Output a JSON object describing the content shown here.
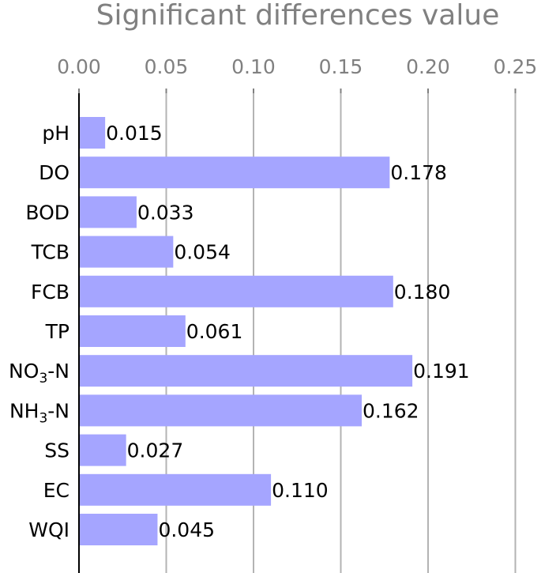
{
  "chart_data": {
    "type": "bar",
    "orientation": "horizontal",
    "title": "",
    "xlabel": "Significant differences value",
    "ylabel": "",
    "xlabel_position": "top",
    "categories": [
      {
        "main": "pH",
        "sub": "",
        "tail": ""
      },
      {
        "main": "DO",
        "sub": "",
        "tail": ""
      },
      {
        "main": "BOD",
        "sub": "",
        "tail": ""
      },
      {
        "main": "TCB",
        "sub": "",
        "tail": ""
      },
      {
        "main": "FCB",
        "sub": "",
        "tail": ""
      },
      {
        "main": "TP",
        "sub": "",
        "tail": ""
      },
      {
        "main": "NO",
        "sub": "3",
        "tail": "-N"
      },
      {
        "main": "NH",
        "sub": "3",
        "tail": "-N"
      },
      {
        "main": "SS",
        "sub": "",
        "tail": ""
      },
      {
        "main": "EC",
        "sub": "",
        "tail": ""
      },
      {
        "main": "WQI",
        "sub": "",
        "tail": ""
      }
    ],
    "values": [
      0.015,
      0.178,
      0.033,
      0.054,
      0.18,
      0.061,
      0.191,
      0.162,
      0.027,
      0.11,
      0.045
    ],
    "value_labels": [
      "0.015",
      "0.178",
      "0.033",
      "0.054",
      "0.180",
      "0.061",
      "0.191",
      "0.162",
      "0.027",
      "0.110",
      "0.045"
    ],
    "xticks": [
      0.0,
      0.05,
      0.1,
      0.15,
      0.2,
      0.25
    ],
    "xtick_labels": [
      "0.00",
      "0.05",
      "0.10",
      "0.15",
      "0.20",
      "0.25"
    ],
    "xlim": [
      0,
      0.25
    ],
    "grid": "vertical",
    "colors": {
      "bar": "#a5a5ff",
      "grid": "#b3b3b3",
      "axis_text": "#808080",
      "label_text": "#000000"
    }
  }
}
